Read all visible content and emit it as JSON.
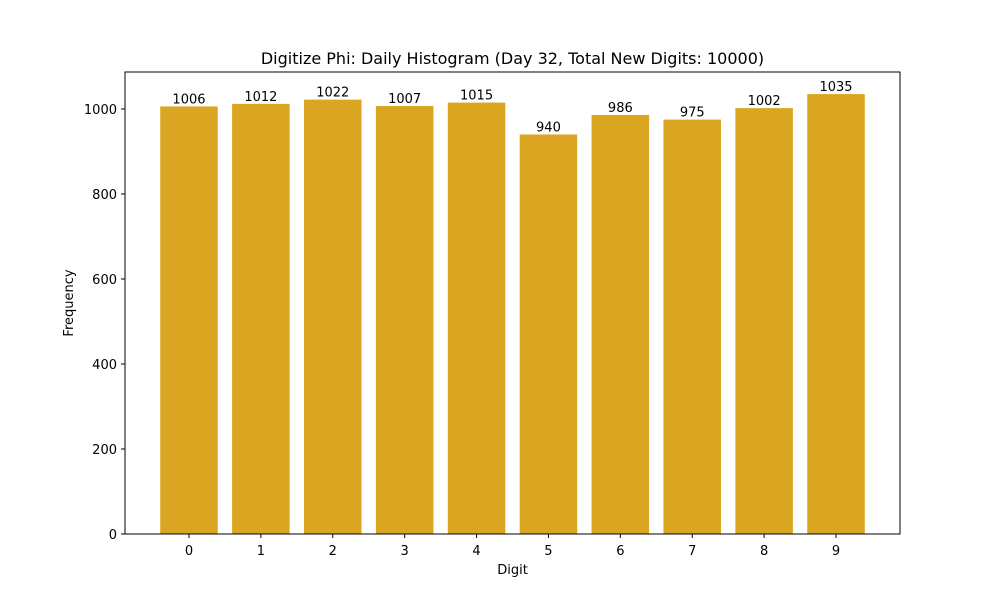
{
  "chart_data": {
    "type": "bar",
    "title": "Digitize Phi: Daily Histogram (Day 32, Total New Digits: 10000)",
    "xlabel": "Digit",
    "ylabel": "Frequency",
    "categories": [
      "0",
      "1",
      "2",
      "3",
      "4",
      "5",
      "6",
      "7",
      "8",
      "9"
    ],
    "values": [
      1006,
      1012,
      1022,
      1007,
      1015,
      940,
      986,
      975,
      1002,
      1035
    ],
    "ylim": [
      0,
      1087
    ],
    "yticks": [
      0,
      200,
      400,
      600,
      800,
      1000
    ],
    "bar_color": "#DAA520",
    "grid": false,
    "legend": "none"
  }
}
